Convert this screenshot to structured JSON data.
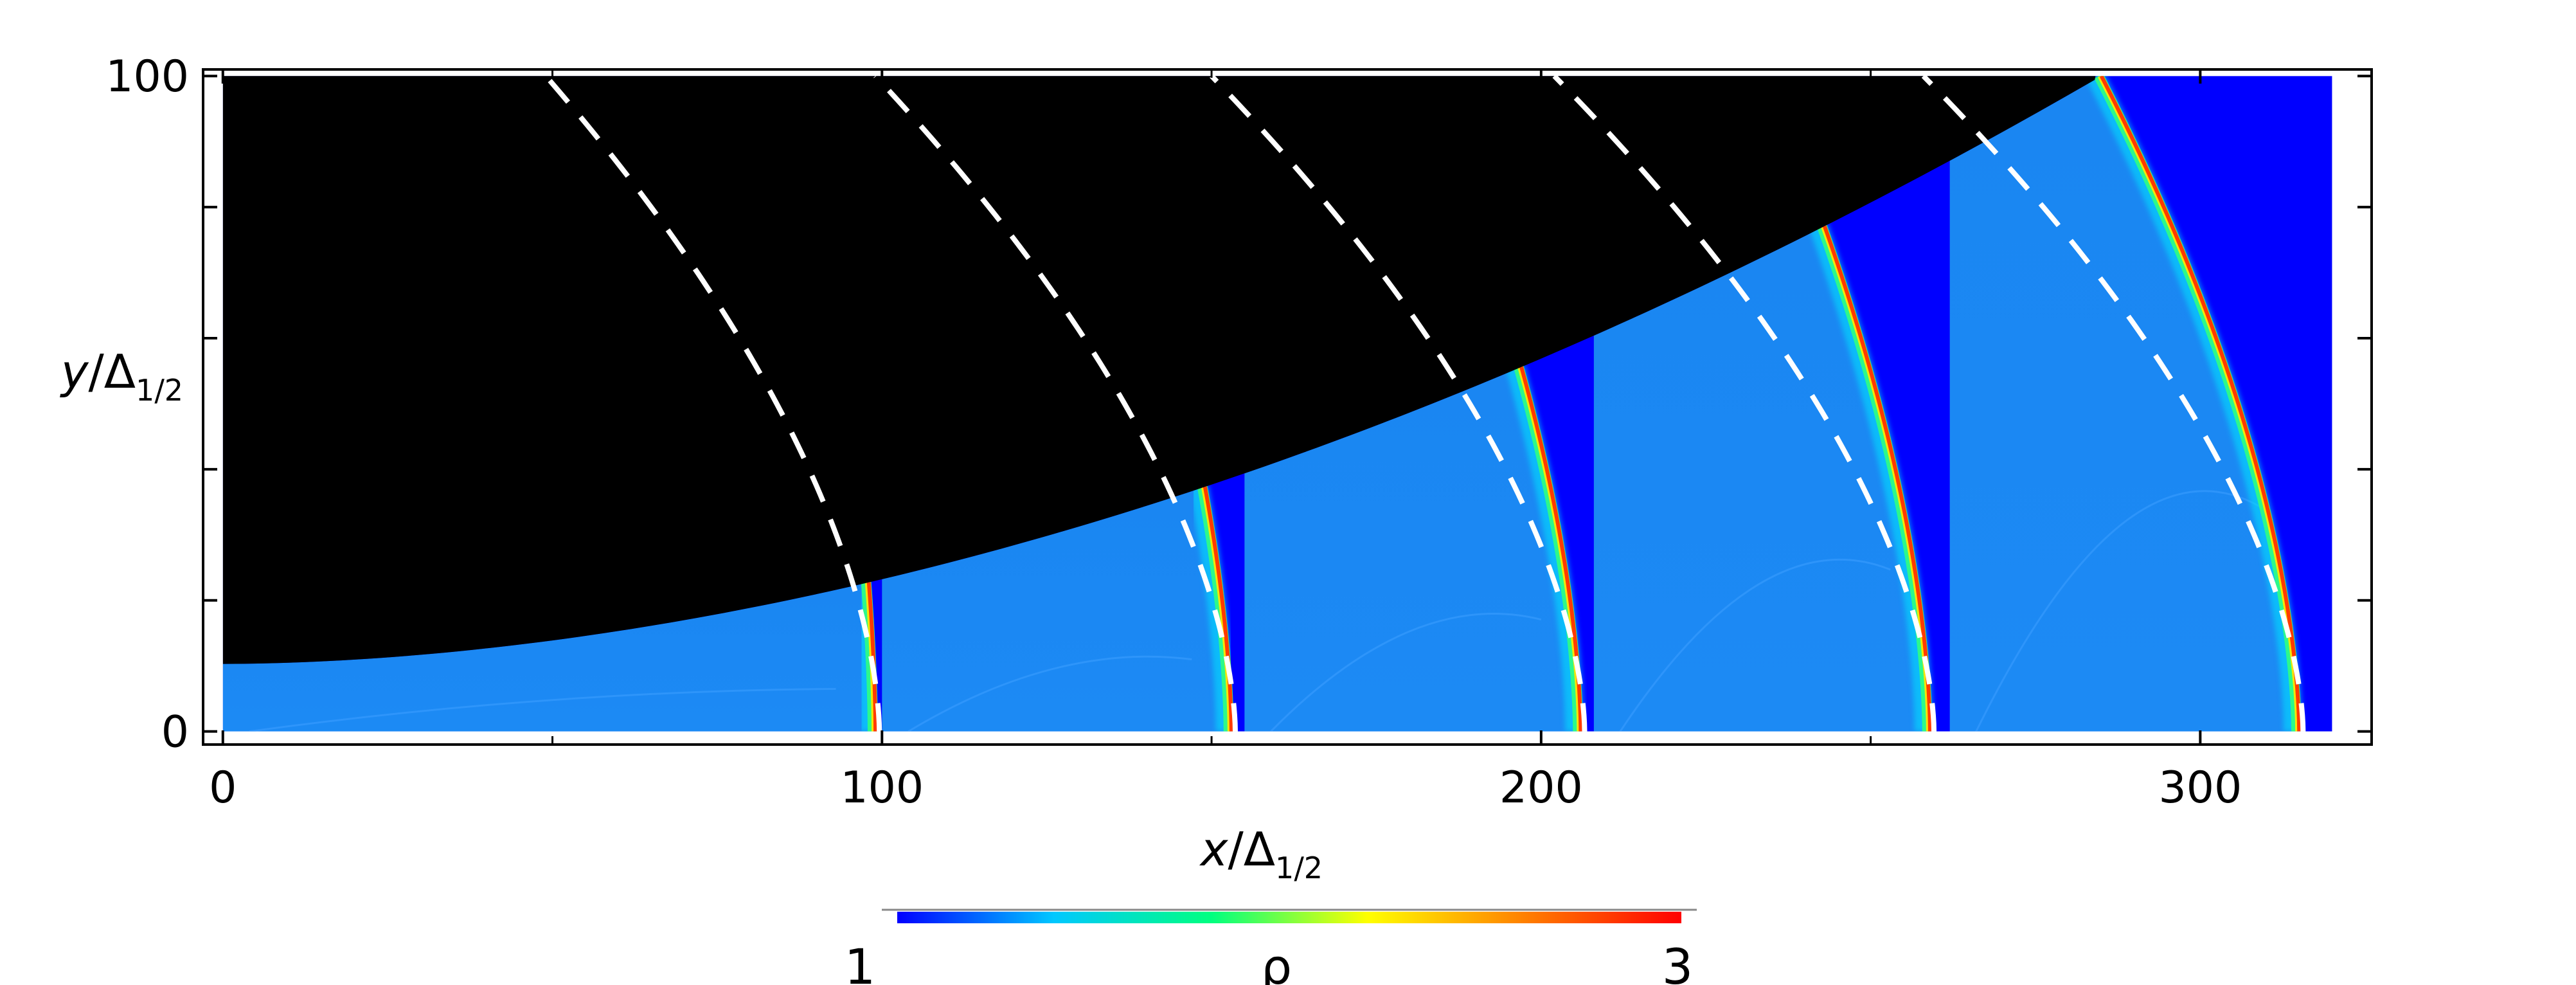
{
  "chart_data": {
    "type": "heatmap",
    "title": "",
    "xlabel": {
      "var": "x",
      "sep": "/Δ",
      "sub": "1/2"
    },
    "ylabel": {
      "var": "y",
      "sep": "/Δ",
      "sub": "1/2"
    },
    "xlim": [
      -3,
      326
    ],
    "ylim": [
      -2,
      101
    ],
    "x_ticks": [
      0,
      100,
      200,
      300
    ],
    "x_tick_labels": [
      "0",
      "100",
      "200",
      "300"
    ],
    "y_ticks": [
      0,
      100
    ],
    "y_tick_labels": [
      "0",
      "100"
    ],
    "y_minor_ticks": [
      20,
      40,
      60,
      80
    ],
    "x_minor_ticks": [
      50,
      150,
      250
    ],
    "domain": {
      "x": [
        0,
        320
      ],
      "y": [
        0,
        100
      ]
    },
    "wall": {
      "y_at_x0": 10.3,
      "x_top": 285,
      "y_top": 100
    },
    "snapshots": [
      {
        "panel_x": [
          0,
          100
        ],
        "shock_x_bottom": 99,
        "shock_x_wall": 98
      },
      {
        "panel_x": [
          100,
          155
        ],
        "shock_x_bottom": 153,
        "shock_x_wall": 149
      },
      {
        "panel_x": [
          155,
          208
        ],
        "shock_x_bottom": 206,
        "shock_x_wall": 197
      },
      {
        "panel_x": [
          208,
          262
        ],
        "shock_x_bottom": 259,
        "shock_x_wall": 243
      },
      {
        "panel_x": [
          262,
          318
        ],
        "shock_x_bottom": 315,
        "shock_x_wall": 285
      }
    ],
    "colorbar": {
      "label": "ρ",
      "min": 1,
      "max": 3,
      "min_label": "1",
      "max_label": "3",
      "colormap": [
        "#0000ff",
        "#00c8ff",
        "#00ff80",
        "#ffff00",
        "#ff8000",
        "#ff0000"
      ]
    },
    "colors": {
      "obstacle": "#000000",
      "background_state": "#0000ff",
      "post_shock_field": "#1878f0",
      "dashed_guide": "#ffffff",
      "frame": "#000000"
    },
    "grid": false
  }
}
